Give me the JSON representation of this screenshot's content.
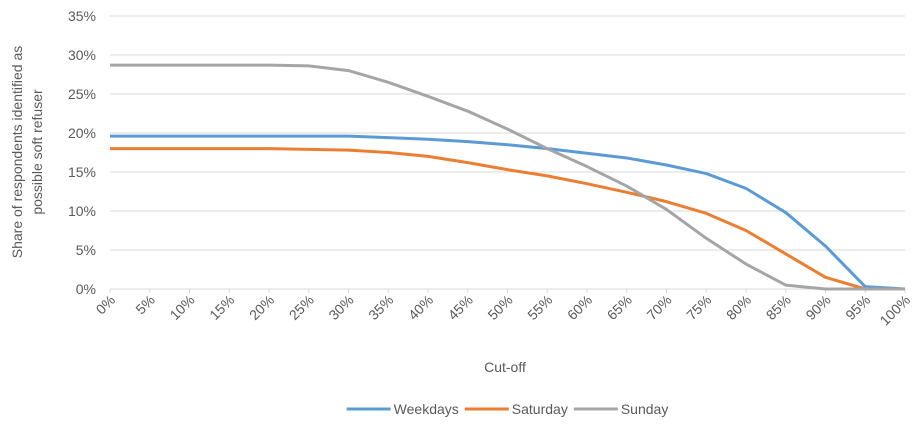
{
  "chart_data": {
    "type": "line",
    "x_label": "Cut-off",
    "y_label": [
      "Share of respondents identified as",
      "possible soft refuser"
    ],
    "x": [
      0,
      5,
      10,
      15,
      20,
      25,
      30,
      35,
      40,
      45,
      50,
      55,
      60,
      65,
      70,
      75,
      80,
      85,
      90,
      95,
      100
    ],
    "series": [
      {
        "name": "Weekdays",
        "color": "#5b9bd5",
        "values": [
          19.6,
          19.6,
          19.6,
          19.6,
          19.6,
          19.6,
          19.6,
          19.4,
          19.2,
          18.9,
          18.5,
          18.0,
          17.4,
          16.8,
          15.9,
          14.8,
          12.9,
          9.8,
          5.5,
          0.3,
          0
        ]
      },
      {
        "name": "Saturday",
        "color": "#ed7d31",
        "values": [
          18.0,
          18.0,
          18.0,
          18.0,
          18.0,
          17.9,
          17.8,
          17.5,
          17.0,
          16.2,
          15.3,
          14.5,
          13.5,
          12.4,
          11.2,
          9.7,
          7.5,
          4.5,
          1.5,
          0,
          0
        ]
      },
      {
        "name": "Sunday",
        "color": "#a5a5a5",
        "values": [
          28.7,
          28.7,
          28.7,
          28.7,
          28.7,
          28.6,
          28.0,
          26.5,
          24.7,
          22.8,
          20.5,
          18.0,
          15.7,
          13.2,
          10.2,
          6.5,
          3.2,
          0.5,
          0,
          0,
          0
        ]
      }
    ],
    "xlim": [
      0,
      100
    ],
    "xticks": [
      {
        "value": 0,
        "label": "0%"
      },
      {
        "value": 5,
        "label": "5%"
      },
      {
        "value": 10,
        "label": "10%"
      },
      {
        "value": 15,
        "label": "15%"
      },
      {
        "value": 20,
        "label": "20%"
      },
      {
        "value": 25,
        "label": "25%"
      },
      {
        "value": 30,
        "label": "30%"
      },
      {
        "value": 35,
        "label": "35%"
      },
      {
        "value": 40,
        "label": "40%"
      },
      {
        "value": 45,
        "label": "45%"
      },
      {
        "value": 50,
        "label": "50%"
      },
      {
        "value": 55,
        "label": "55%"
      },
      {
        "value": 60,
        "label": "60%"
      },
      {
        "value": 65,
        "label": "65%"
      },
      {
        "value": 70,
        "label": "70%"
      },
      {
        "value": 75,
        "label": "75%"
      },
      {
        "value": 80,
        "label": "80%"
      },
      {
        "value": 85,
        "label": "85%"
      },
      {
        "value": 90,
        "label": "90%"
      },
      {
        "value": 95,
        "label": "95%"
      },
      {
        "value": 100,
        "label": "100%"
      }
    ],
    "ylim": [
      0,
      35
    ],
    "yticks": [
      {
        "value": 0,
        "label": "0%"
      },
      {
        "value": 5,
        "label": "5%"
      },
      {
        "value": 10,
        "label": "10%"
      },
      {
        "value": 15,
        "label": "15%"
      },
      {
        "value": 20,
        "label": "20%"
      },
      {
        "value": 25,
        "label": "25%"
      },
      {
        "value": 30,
        "label": "30%"
      },
      {
        "value": 35,
        "label": "35%"
      }
    ],
    "grid": true,
    "legend": "bottom"
  }
}
